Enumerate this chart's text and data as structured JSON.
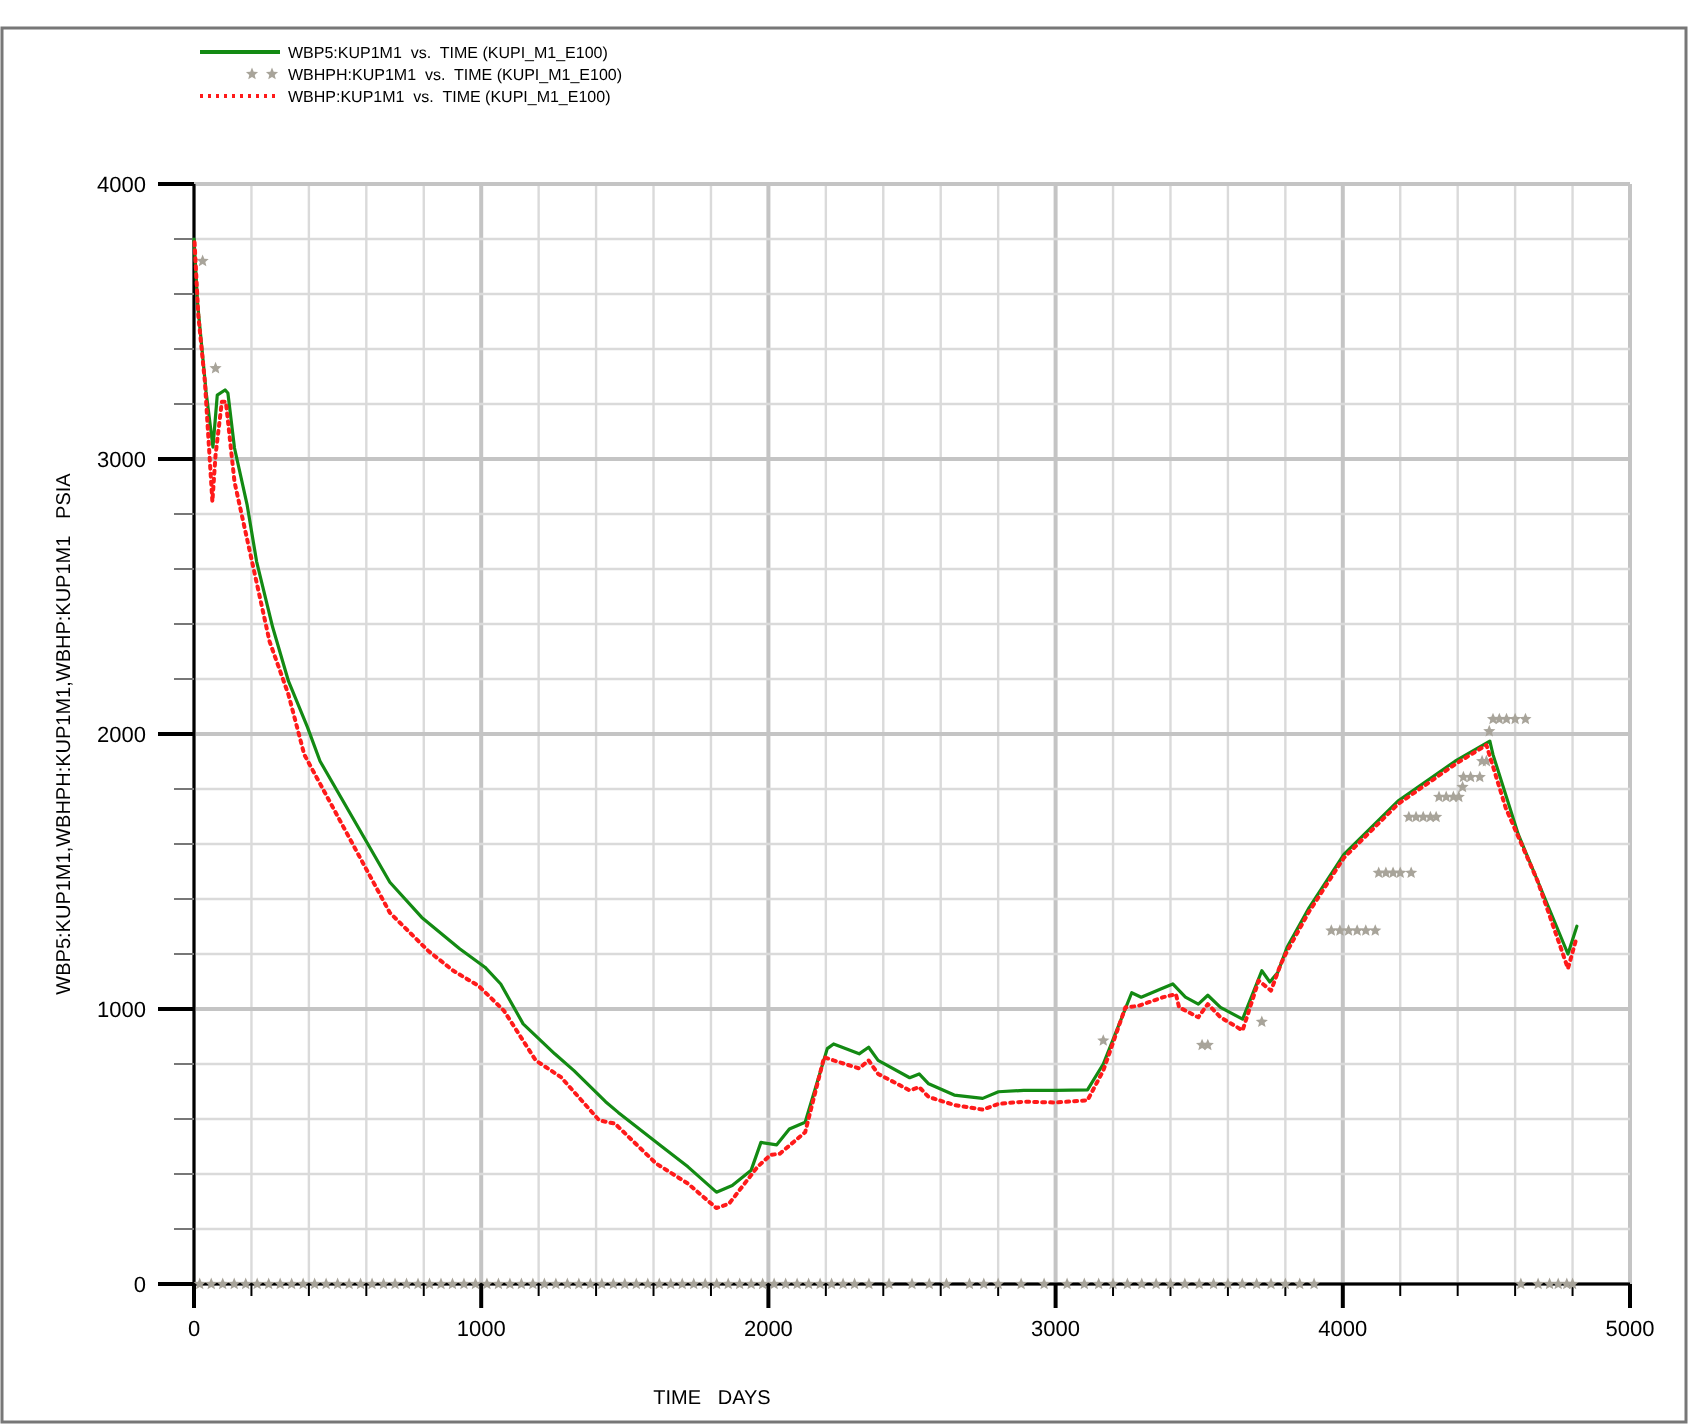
{
  "chart_data": {
    "type": "line",
    "xlabel": "TIME   DAYS",
    "ylabel": "WBP5:KUP1M1,WBHPH:KUP1M1,WBHP:KUP1M1   PSIA",
    "legend": "top left",
    "grid": true,
    "xlim": [
      0,
      5000
    ],
    "ylim": [
      0,
      4000
    ],
    "xticks": [
      0,
      {
        "value": 200,
        "label": null
      },
      {
        "value": 400,
        "label": null
      },
      {
        "value": 600,
        "label": null
      },
      {
        "value": 800,
        "label": null
      },
      1000,
      {
        "value": 1200,
        "label": null
      },
      {
        "value": 1400,
        "label": null
      },
      {
        "value": 1600,
        "label": null
      },
      {
        "value": 1800,
        "label": null
      },
      2000,
      {
        "value": 2200,
        "label": null
      },
      {
        "value": 2400,
        "label": null
      },
      {
        "value": 2600,
        "label": null
      },
      {
        "value": 2800,
        "label": null
      },
      3000,
      {
        "value": 3200,
        "label": null
      },
      {
        "value": 3400,
        "label": null
      },
      {
        "value": 3600,
        "label": null
      },
      {
        "value": 3800,
        "label": null
      },
      4000,
      {
        "value": 4200,
        "label": null
      },
      {
        "value": 4400,
        "label": null
      },
      {
        "value": 4600,
        "label": null
      },
      {
        "value": 4800,
        "label": null
      },
      5000
    ],
    "yticks": [
      0,
      {
        "value": 200,
        "label": null
      },
      {
        "value": 400,
        "label": null
      },
      {
        "value": 600,
        "label": null
      },
      {
        "value": 800,
        "label": null
      },
      1000,
      {
        "value": 1200,
        "label": null
      },
      {
        "value": 1400,
        "label": null
      },
      {
        "value": 1600,
        "label": null
      },
      {
        "value": 1800,
        "label": null
      },
      2000,
      {
        "value": 2200,
        "label": null
      },
      {
        "value": 2400,
        "label": null
      },
      {
        "value": 2600,
        "label": null
      },
      {
        "value": 2800,
        "label": null
      },
      3000,
      {
        "value": 3200,
        "label": null
      },
      {
        "value": 3400,
        "label": null
      },
      {
        "value": 3600,
        "label": null
      },
      {
        "value": 3800,
        "label": null
      },
      4000
    ],
    "series": [
      {
        "name": "WBP5:KUP1M1  vs.  TIME (KUPI_M1_E100)",
        "type": "line",
        "color": "#138a13",
        "line_style": "solid",
        "marker": "none",
        "x": [
          0,
          13,
          42,
          66,
          81,
          108,
          118,
          141,
          185,
          218,
          274,
          329,
          395,
          439,
          682,
          793,
          925,
          1013,
          1068,
          1146,
          1256,
          1323,
          1433,
          1477,
          1631,
          1720,
          1819,
          1874,
          1940,
          1974,
          2029,
          2073,
          2128,
          2205,
          2227,
          2316,
          2349,
          2382,
          2492,
          2525,
          2558,
          2647,
          2746,
          2801,
          2889,
          3000,
          3111,
          3166,
          3265,
          3298,
          3364,
          3408,
          3452,
          3497,
          3530,
          3574,
          3651,
          3718,
          3746,
          3773,
          3806,
          3883,
          4004,
          4192,
          4391,
          4512,
          4523,
          4611,
          4784,
          4815
        ],
        "values": [
          3800,
          3560,
          3245,
          3043,
          3232,
          3251,
          3240,
          3040,
          2833,
          2627,
          2388,
          2192,
          2025,
          1901,
          1461,
          1333,
          1219,
          1152,
          1091,
          946,
          837,
          776,
          663,
          624,
          498,
          426,
          334,
          358,
          414,
          515,
          506,
          564,
          588,
          856,
          873,
          837,
          861,
          813,
          750,
          764,
          728,
          687,
          675,
          699,
          704,
          704,
          706,
          800,
          1059,
          1043,
          1072,
          1091,
          1043,
          1018,
          1050,
          1006,
          963,
          1139,
          1098,
          1132,
          1224,
          1369,
          1562,
          1756,
          1901,
          1974,
          1925,
          1635,
          1200,
          1301
        ]
      },
      {
        "name": "WBHPH:KUP1M1  vs.  TIME (KUPI_M1_E100)",
        "type": "scatter",
        "color": "#a8a49a",
        "marker": "star",
        "x": [
          30,
          75,
          3166,
          3510,
          3530,
          3718,
          3960,
          3990,
          4020,
          4050,
          4080,
          4113,
          4125,
          4150,
          4175,
          4200,
          4238,
          4230,
          4255,
          4280,
          4305,
          4325,
          4335,
          4360,
          4385,
          4404,
          4417,
          4420,
          4445,
          4477,
          4485,
          4500,
          4510,
          4523,
          4545,
          4570,
          4600,
          4636,
          20,
          60,
          100,
          140,
          180,
          220,
          260,
          300,
          340,
          380,
          420,
          460,
          500,
          540,
          580,
          620,
          660,
          700,
          740,
          780,
          820,
          860,
          900,
          940,
          980,
          1020,
          1060,
          1100,
          1140,
          1180,
          1220,
          1260,
          1300,
          1340,
          1380,
          1420,
          1460,
          1500,
          1540,
          1580,
          1620,
          1660,
          1700,
          1740,
          1780,
          1820,
          1860,
          1900,
          1940,
          1980,
          2020,
          2060,
          2100,
          2140,
          2180,
          2220,
          2260,
          2300,
          2350,
          2420,
          2500,
          2560,
          2620,
          2700,
          2750,
          2800,
          2880,
          2960,
          3040,
          3100,
          3150,
          3200,
          3250,
          3300,
          3350,
          3400,
          3450,
          3500,
          3550,
          3600,
          3650,
          3700,
          3750,
          3800,
          3850,
          3900,
          4620,
          4680,
          4720,
          4750,
          4780,
          4800
        ],
        "values": [
          3720,
          3330,
          885,
          869,
          869,
          953,
          1285,
          1285,
          1285,
          1285,
          1285,
          1285,
          1495,
          1495,
          1495,
          1495,
          1495,
          1698,
          1698,
          1698,
          1698,
          1698,
          1771,
          1771,
          1771,
          1771,
          1807,
          1843,
          1843,
          1843,
          1901,
          1901,
          2010,
          2054,
          2054,
          2054,
          2054,
          2054,
          0,
          0,
          0,
          0,
          0,
          0,
          0,
          0,
          0,
          0,
          0,
          0,
          0,
          0,
          0,
          0,
          0,
          0,
          0,
          0,
          0,
          0,
          0,
          0,
          0,
          0,
          0,
          0,
          0,
          0,
          0,
          0,
          0,
          0,
          0,
          0,
          0,
          0,
          0,
          0,
          0,
          0,
          0,
          0,
          0,
          0,
          0,
          0,
          0,
          0,
          0,
          0,
          0,
          0,
          0,
          0,
          0,
          0,
          0,
          0,
          0,
          0,
          0,
          0,
          0,
          0,
          0,
          0,
          0,
          0,
          0,
          0,
          0,
          0,
          0,
          0,
          0,
          0,
          0,
          0,
          0,
          0,
          0,
          0,
          0,
          0,
          0,
          0,
          0,
          0,
          0,
          0
        ]
      },
      {
        "name": "WBHP:KUP1M1  vs.  TIME (KUPI_M1_E100)",
        "type": "line",
        "color": "#ff1a1a",
        "line_style": "dotted",
        "marker": "none",
        "x": [
          2,
          15,
          38,
          64,
          75,
          97,
          111,
          141,
          197,
          263,
          329,
          384,
          682,
          815,
          903,
          991,
          1079,
          1190,
          1278,
          1411,
          1466,
          1609,
          1720,
          1819,
          1863,
          1962,
          2007,
          2040,
          2128,
          2194,
          2227,
          2316,
          2349,
          2382,
          2492,
          2525,
          2558,
          2647,
          2746,
          2801,
          2889,
          3000,
          3111,
          3166,
          3243,
          3287,
          3375,
          3419,
          3430,
          3497,
          3530,
          3574,
          3651,
          3707,
          3750,
          3784,
          3806,
          3883,
          4004,
          4192,
          4391,
          4500,
          4567,
          4678,
          4784,
          4811
        ],
        "values": [
          3788,
          3522,
          3280,
          2845,
          3014,
          3208,
          3208,
          2917,
          2651,
          2337,
          2143,
          1925,
          1350,
          1212,
          1139,
          1084,
          994,
          813,
          752,
          595,
          583,
          438,
          365,
          276,
          292,
          426,
          469,
          474,
          552,
          825,
          813,
          784,
          813,
          764,
          704,
          716,
          680,
          651,
          634,
          655,
          663,
          660,
          668,
          776,
          1006,
          1011,
          1043,
          1054,
          1006,
          970,
          1018,
          970,
          922,
          1103,
          1067,
          1163,
          1210,
          1355,
          1550,
          1745,
          1890,
          1960,
          1732,
          1466,
          1147,
          1248
        ]
      }
    ]
  }
}
